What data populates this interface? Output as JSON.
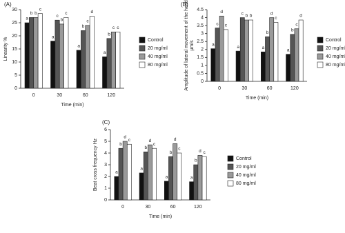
{
  "chart_data": [
    {
      "type": "bar",
      "label": "(A)",
      "ylabel": [
        "Linearity %"
      ],
      "xlabel": "Time (min)",
      "categories": [
        "0",
        "30",
        "60",
        "120"
      ],
      "ylim": [
        0,
        30
      ],
      "yticks": [
        0,
        5,
        10,
        15,
        20,
        25,
        30
      ],
      "series": [
        {
          "name": "Control",
          "color": "#111111",
          "values": [
            25,
            18,
            14.5,
            12
          ],
          "letters": [
            "a",
            "a",
            "a",
            "a"
          ]
        },
        {
          "name": "20 mg/ml",
          "color": "#555555",
          "values": [
            27,
            26,
            22,
            19
          ],
          "letters": [
            "b",
            "c",
            "b",
            "b"
          ]
        },
        {
          "name": "40 mg/ml",
          "color": "#9a9a9a",
          "values": [
            27,
            24.5,
            24,
            21.5
          ],
          "letters": [
            "b",
            "b",
            "c",
            "c"
          ]
        },
        {
          "name": "80 mg/ml",
          "color": "#ffffff",
          "values": [
            28.5,
            27,
            27.5,
            21.5
          ],
          "letters": [
            "c",
            "c",
            "d",
            "c"
          ]
        }
      ]
    },
    {
      "type": "bar",
      "label": "(B)",
      "ylabel": [
        "Amplitude of lateral movement of the head",
        "µm/s"
      ],
      "xlabel": "Time (min)",
      "categories": [
        "0",
        "30",
        "60",
        "120"
      ],
      "ylim": [
        0,
        4.5
      ],
      "yticks": [
        0,
        0.5,
        1,
        1.5,
        2,
        2.5,
        3,
        3.5,
        4,
        4.5
      ],
      "series": [
        {
          "name": "Control",
          "color": "#111111",
          "values": [
            2.05,
            1.9,
            1.85,
            1.7
          ],
          "letters": [
            "a",
            "a",
            "a",
            "a"
          ]
        },
        {
          "name": "20 mg/ml",
          "color": "#555555",
          "values": [
            3.35,
            4.0,
            2.8,
            2.95
          ],
          "letters": [
            "c",
            "c",
            "b",
            "b"
          ]
        },
        {
          "name": "40 mg/ml",
          "color": "#9a9a9a",
          "values": [
            4.1,
            3.85,
            4.0,
            3.3
          ],
          "letters": [
            "d",
            "b",
            "d",
            "c"
          ]
        },
        {
          "name": "80 mg/ml",
          "color": "#ffffff",
          "values": [
            3.25,
            3.85,
            3.7,
            3.85
          ],
          "letters": [
            "c",
            "b",
            "c",
            "d"
          ]
        }
      ]
    },
    {
      "type": "bar",
      "label": "(C)",
      "ylabel": [
        "Beat cross frequency Hz"
      ],
      "xlabel": "Time (min)",
      "categories": [
        "0",
        "30",
        "60",
        "120"
      ],
      "ylim": [
        0,
        6
      ],
      "yticks": [
        0,
        1,
        2,
        3,
        4,
        5,
        6
      ],
      "series": [
        {
          "name": "Control",
          "color": "#111111",
          "values": [
            2.0,
            2.3,
            1.6,
            1.55
          ],
          "letters": [
            "a",
            "a",
            "a",
            "a"
          ]
        },
        {
          "name": "20 mg/ml",
          "color": "#555555",
          "values": [
            4.4,
            4.1,
            3.7,
            3.0
          ],
          "letters": [
            "b",
            "b",
            "b",
            "b"
          ]
        },
        {
          "name": "40 mg/ml",
          "color": "#9a9a9a",
          "values": [
            5.0,
            4.7,
            4.8,
            3.8
          ],
          "letters": [
            "d",
            "d",
            "d",
            "d"
          ]
        },
        {
          "name": "80 mg/ml",
          "color": "#ffffff",
          "values": [
            4.75,
            4.4,
            4.0,
            3.7
          ],
          "letters": [
            "c",
            "c",
            "c",
            "c"
          ]
        }
      ]
    }
  ]
}
